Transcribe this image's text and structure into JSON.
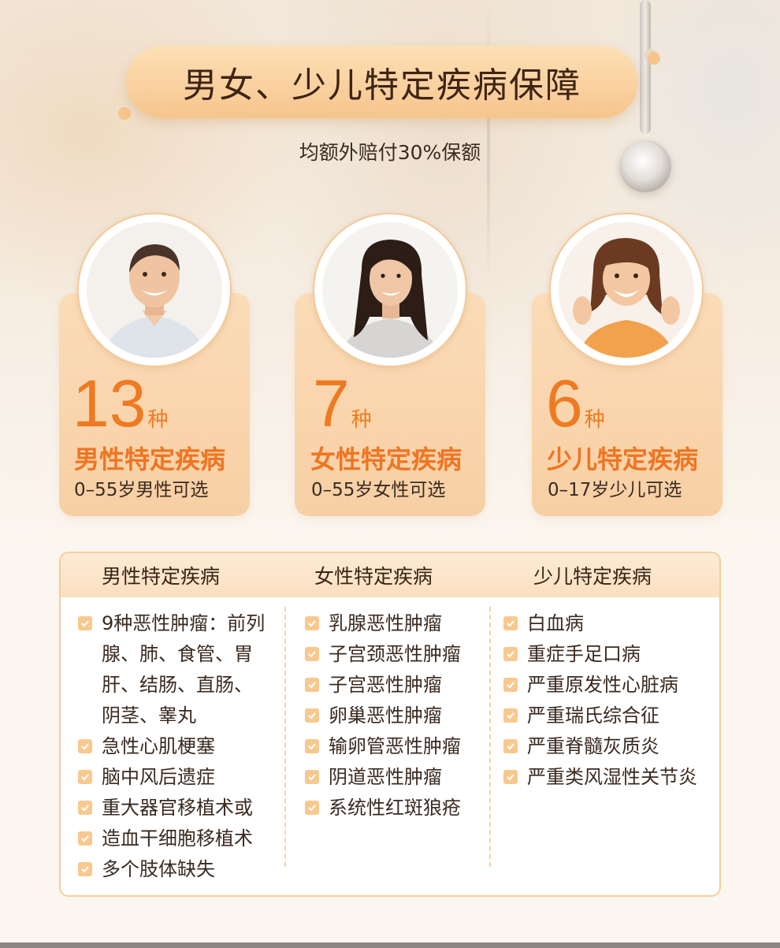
{
  "title": "男女、少儿特定疾病保障",
  "subtitle": "均额外赔付30%保额",
  "cards": [
    {
      "avatar": "man-photo",
      "count": "13",
      "unit": "种",
      "title": "男性特定疾病",
      "sub": "0–55岁男性可选"
    },
    {
      "avatar": "woman-photo",
      "count": "7",
      "unit": "种",
      "title": "女性特定疾病",
      "sub": "0–55岁女性可选"
    },
    {
      "avatar": "child-photo",
      "count": "6",
      "unit": "种",
      "title": "少儿特定疾病",
      "sub": "0–17岁少儿可选"
    }
  ],
  "table": {
    "headers": [
      "男性特定疾病",
      "女性特定疾病",
      "少儿特定疾病"
    ],
    "male": [
      "9种恶性肿瘤：前列腺、肺、食管、胃肝、结肠、直肠、阴茎、睾丸",
      "急性心肌梗塞",
      "脑中风后遗症",
      "重大器官移植术或",
      "造血干细胞移植术",
      "多个肢体缺失"
    ],
    "male_first_lines": [
      "9种恶性肿瘤：前列",
      "腺、肺、食管、胃",
      "肝、结肠、直肠、",
      "阴茎、睾丸"
    ],
    "female": [
      "乳腺恶性肿瘤",
      "子宫颈恶性肿瘤",
      "子宫恶性肿瘤",
      "卵巢恶性肿瘤",
      "输卵管恶性肿瘤",
      "阴道恶性肿瘤",
      "系统性红斑狼疮"
    ],
    "child": [
      "白血病",
      "重症手足口病",
      "严重原发性心脏病",
      "严重瑞氏综合征",
      "严重脊髓灰质炎",
      "严重类风湿性关节炎"
    ]
  },
  "colors": {
    "accent": "#ee7a22",
    "card": "#f9d4aa",
    "check": "#f8c98f",
    "title_pill": "#f6c58d"
  }
}
